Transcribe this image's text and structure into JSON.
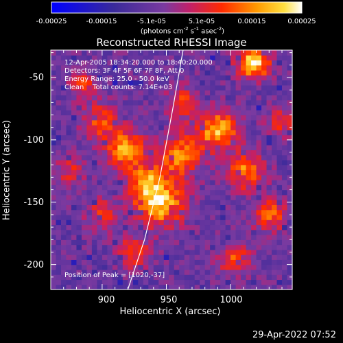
{
  "colorbar": {
    "ticks": [
      "-0.00025",
      "-0.00015",
      "-5.1e-05",
      "5.1e-05",
      "0.00015",
      "0.00025"
    ],
    "unit_main": "(photons cm",
    "unit_sup1": "-2",
    "unit_mid": " s",
    "unit_sup2": "-1",
    "unit_end": " asec",
    "unit_sup3": "-2",
    "unit_close": ")",
    "range": [
      -0.00025,
      0.00025
    ]
  },
  "annotations": {
    "time": "12-Apr-2005 18:34:20.000 to 18:40:20.000",
    "detectors": "Detectors: 3F 4F 5F 6F 7F 8F, Att 0",
    "energy": "Energy Range: 25.0 - 50.0 keV",
    "clean": "Clean    Total counts: 7.14E+03",
    "peak": "Position of Peak = [1020,-37]"
  },
  "footer": {
    "timestamp": "29-Apr-2022 07:52"
  },
  "chart_data": {
    "type": "heatmap",
    "title": "Reconstructed RHESSI Image",
    "xlabel": "Heliocentric X (arcsec)",
    "ylabel": "Heliocentric Y (arcsec)",
    "xlim": [
      860,
      1048
    ],
    "ylim": [
      -220,
      -28
    ],
    "x_ticks": [
      "900",
      "950",
      "1000"
    ],
    "x_tick_values": [
      900,
      950,
      1000
    ],
    "y_ticks": [
      "-50",
      "-100",
      "-150",
      "-200"
    ],
    "y_tick_values": [
      -50,
      -100,
      -150,
      -200
    ],
    "peak": [
      1020,
      -37
    ],
    "limb_points": [
      [
        920,
        -220
      ],
      [
        933,
        -180
      ],
      [
        945,
        -130
      ],
      [
        955,
        -75
      ],
      [
        963,
        -28
      ]
    ],
    "emission_blobs": [
      {
        "x": 1018,
        "y": -38,
        "amp": 1.0,
        "sig": 9
      },
      {
        "x": 945,
        "y": -150,
        "amp": 0.95,
        "sig": 13
      },
      {
        "x": 918,
        "y": -107,
        "amp": 0.8,
        "sig": 10
      },
      {
        "x": 990,
        "y": -92,
        "amp": 0.85,
        "sig": 11
      },
      {
        "x": 1012,
        "y": -125,
        "amp": 0.7,
        "sig": 10
      },
      {
        "x": 960,
        "y": -112,
        "amp": 0.7,
        "sig": 12
      },
      {
        "x": 932,
        "y": -132,
        "amp": 0.65,
        "sig": 10
      },
      {
        "x": 898,
        "y": -85,
        "amp": 0.55,
        "sig": 10
      },
      {
        "x": 885,
        "y": -55,
        "amp": 0.45,
        "sig": 8
      },
      {
        "x": 1030,
        "y": -160,
        "amp": 0.65,
        "sig": 9
      },
      {
        "x": 1003,
        "y": -195,
        "amp": 0.55,
        "sig": 9
      },
      {
        "x": 963,
        "y": -70,
        "amp": 0.5,
        "sig": 9
      },
      {
        "x": 900,
        "y": -160,
        "amp": 0.45,
        "sig": 9
      },
      {
        "x": 925,
        "y": -190,
        "amp": 0.5,
        "sig": 9
      },
      {
        "x": 1040,
        "y": -85,
        "amp": 0.45,
        "sig": 8
      },
      {
        "x": 875,
        "y": -125,
        "amp": 0.4,
        "sig": 8
      }
    ]
  }
}
